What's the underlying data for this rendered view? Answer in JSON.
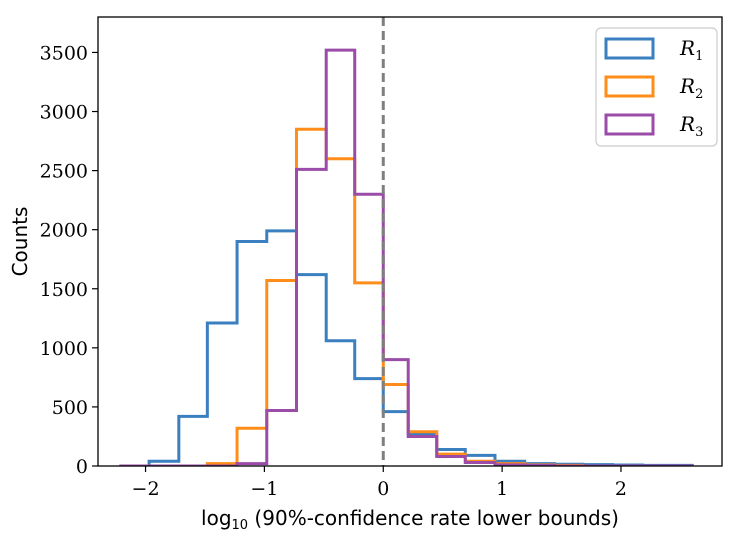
{
  "chart_data": {
    "type": "histogram",
    "title": "",
    "xlabel": "log10 (90%-confidence rate lower bounds)",
    "xlabel_parts": {
      "log": "log",
      "base": "10",
      "rest": " (90%-confidence rate lower bounds)"
    },
    "ylabel": "Counts",
    "xlim": [
      -2.4,
      2.85
    ],
    "ylim": [
      0,
      3800
    ],
    "xticks": [
      -2,
      -1,
      0,
      1,
      2
    ],
    "xtick_labels": [
      "−2",
      "−1",
      "0",
      "1",
      "2"
    ],
    "yticks": [
      0,
      500,
      1000,
      1500,
      2000,
      2500,
      3000,
      3500
    ],
    "ytick_labels": [
      "0",
      "500",
      "1000",
      "1500",
      "2000",
      "2500",
      "3000",
      "3500"
    ],
    "bin_edges": [
      -2.22,
      -1.97,
      -1.72,
      -1.48,
      -1.23,
      -0.98,
      -0.73,
      -0.48,
      -0.24,
      0.0,
      0.21,
      0.45,
      0.69,
      0.94,
      1.19,
      1.44,
      1.68,
      1.93,
      2.18,
      2.42,
      2.6
    ],
    "reference_line": {
      "x": 0,
      "style": "dashed",
      "color": "#7f7f7f"
    },
    "series": [
      {
        "name": "R1",
        "label_main": "R",
        "label_sub": "1",
        "color": "#3a7fbf",
        "values": [
          0,
          40,
          420,
          1210,
          1900,
          1990,
          1620,
          1060,
          740,
          460,
          270,
          140,
          90,
          40,
          20,
          15,
          12,
          8,
          5,
          5
        ]
      },
      {
        "name": "R2",
        "label_main": "R",
        "label_sub": "2",
        "color": "#ff8d1a",
        "values": [
          0,
          0,
          0,
          20,
          320,
          1570,
          2850,
          2600,
          1550,
          690,
          290,
          100,
          40,
          20,
          10,
          5,
          0,
          0,
          0,
          0
        ]
      },
      {
        "name": "R3",
        "label_main": "R",
        "label_sub": "3",
        "color": "#9b4ba8",
        "values": [
          0,
          0,
          0,
          0,
          20,
          470,
          2510,
          3520,
          2300,
          900,
          250,
          80,
          30,
          10,
          5,
          0,
          0,
          0,
          0,
          0
        ]
      }
    ],
    "legend_position": "top-right"
  }
}
